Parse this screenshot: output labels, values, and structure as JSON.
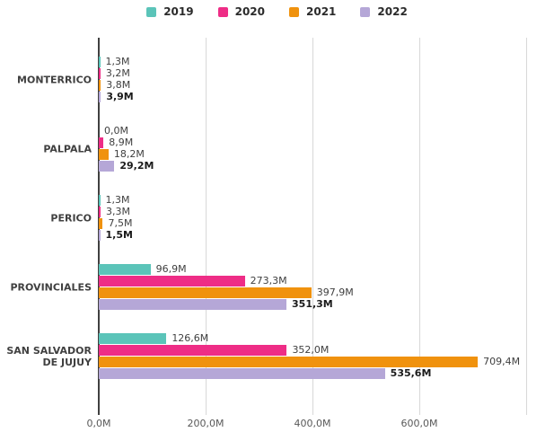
{
  "chart_data": {
    "type": "bar",
    "orientation": "horizontal",
    "title": "",
    "xlabel": "",
    "ylabel": "",
    "grid": true,
    "legend_position": "top",
    "categories": [
      "MONTERRICO",
      "PALPALA",
      "PERICO",
      "PROVINCIALES",
      "SAN SALVADOR DE JUJUY"
    ],
    "series": [
      {
        "name": "2019",
        "color": "#5bc4b9",
        "values_M": [
          1.3,
          0.0,
          1.3,
          96.9,
          126.6
        ],
        "value_labels": [
          "1,3M",
          "0,0M",
          "1,3M",
          "96,9M",
          "126,6M"
        ],
        "bold_value_labels": false
      },
      {
        "name": "2020",
        "color": "#ee2d86",
        "values_M": [
          3.2,
          8.9,
          3.3,
          273.3,
          352.0
        ],
        "value_labels": [
          "3,2M",
          "8,9M",
          "3,3M",
          "273,3M",
          "352,0M"
        ],
        "bold_value_labels": false
      },
      {
        "name": "2021",
        "color": "#f0920e",
        "values_M": [
          3.8,
          18.2,
          7.5,
          397.9,
          709.4
        ],
        "value_labels": [
          "3,8M",
          "18,2M",
          "7,5M",
          "397,9M",
          "709,4M"
        ],
        "bold_value_labels": false
      },
      {
        "name": "2022",
        "color": "#b5a7d7",
        "values_M": [
          3.9,
          29.2,
          1.5,
          351.3,
          535.6
        ],
        "value_labels": [
          "3,9M",
          "29,2M",
          "1,5M",
          "351,3M",
          "535,6M"
        ],
        "bold_value_labels": true
      }
    ],
    "x_axis": {
      "unit": "M",
      "min": 0,
      "max": 800,
      "tick_interval": 200,
      "tick_labels": [
        "0,0M",
        "200,0M",
        "400,0M",
        "600,0M"
      ]
    }
  }
}
